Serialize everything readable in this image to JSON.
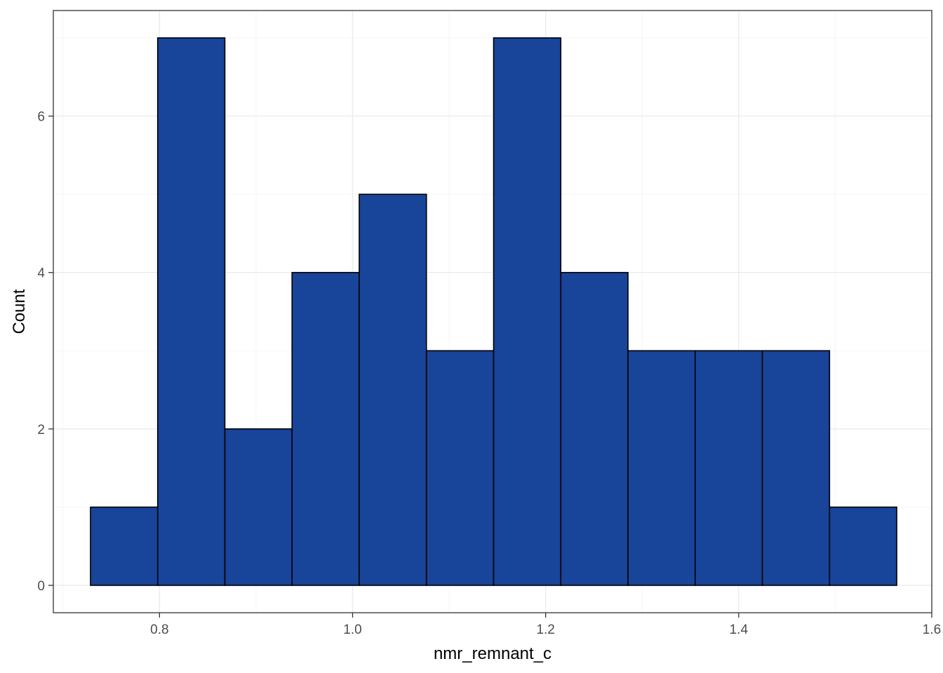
{
  "chart_data": {
    "type": "bar",
    "subtype": "histogram",
    "xlabel": "nmr_remnant_c",
    "ylabel": "Count",
    "xlim": [
      0.69,
      1.6
    ],
    "ylim": [
      -0.35,
      7.35
    ],
    "x_ticks": [
      0.8,
      1.0,
      1.2,
      1.4,
      1.6
    ],
    "x_tick_labels": [
      "0.8",
      "1.0",
      "1.2",
      "1.4",
      "1.6"
    ],
    "y_ticks": [
      0,
      2,
      4,
      6
    ],
    "y_tick_labels": [
      "0",
      "2",
      "4",
      "6"
    ],
    "bin_edges": [
      0.7285,
      0.7981,
      0.8677,
      0.9373,
      1.0069,
      1.0765,
      1.1461,
      1.2157,
      1.2853,
      1.3549,
      1.4245,
      1.4941,
      1.5637
    ],
    "values": [
      1,
      7,
      2,
      4,
      5,
      3,
      7,
      4,
      3,
      3,
      3,
      1
    ],
    "grid": true,
    "theme": "bw",
    "colors": {
      "bar_fill": "#18449a",
      "bar_stroke": "#000000",
      "grid_major": "#ebebeb",
      "grid_minor": "#f5f5f5",
      "panel_border": "#333333"
    }
  }
}
